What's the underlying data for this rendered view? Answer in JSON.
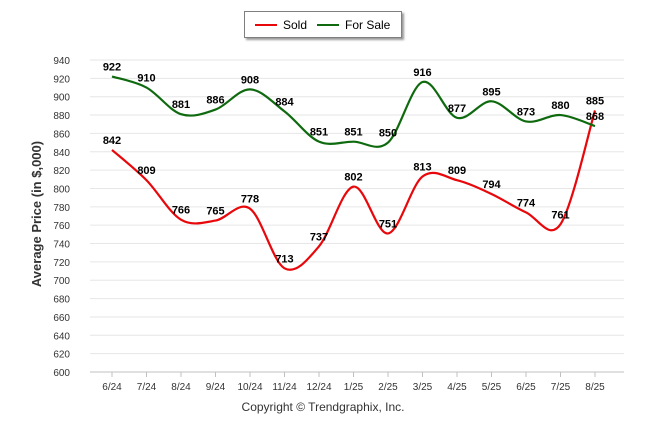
{
  "chart_data": {
    "type": "line",
    "ylabel": "Average Price (in $,000)",
    "xlabel": "",
    "categories": [
      "6/24",
      "7/24",
      "8/24",
      "9/24",
      "10/24",
      "11/24",
      "12/24",
      "1/25",
      "2/25",
      "3/25",
      "4/25",
      "5/25",
      "6/25",
      "7/25",
      "8/25"
    ],
    "ylim": [
      600,
      940
    ],
    "ytick_step": 20,
    "grid": "horizontal",
    "legend_position": "top-center",
    "series": [
      {
        "name": "Sold",
        "color": "#e8080b",
        "values": [
          842,
          809,
          766,
          765,
          778,
          713,
          737,
          802,
          751,
          813,
          809,
          794,
          774,
          761,
          885
        ]
      },
      {
        "name": "For Sale",
        "color": "#0f6a0f",
        "values": [
          922,
          910,
          881,
          886,
          908,
          884,
          851,
          851,
          850,
          916,
          877,
          895,
          873,
          880,
          868
        ]
      }
    ],
    "footer": "Copyright © Trendgraphix, Inc."
  }
}
